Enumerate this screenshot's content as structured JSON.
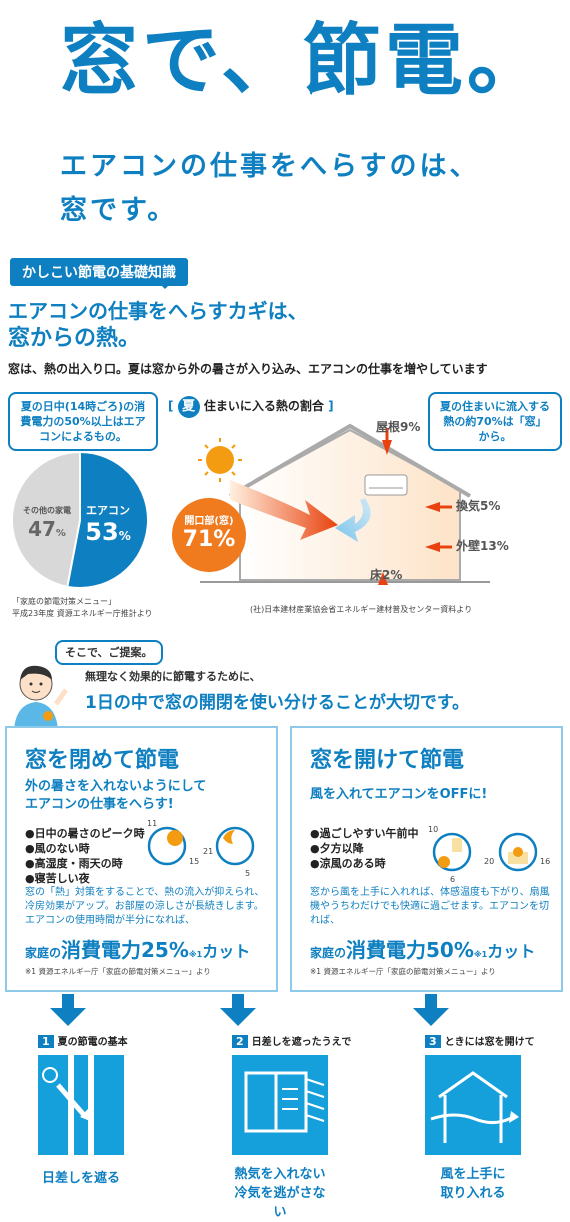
{
  "hero": {
    "title": "窓で、節電。",
    "subtitle_line1": "エアコンの仕事をへらすのは、",
    "subtitle_line2": "窓です。"
  },
  "basics": {
    "tag": "かしこい節電の基礎知識",
    "heading_line1": "エアコンの仕事をへらすカギは、",
    "heading_line2": "窓からの熱。",
    "description": "窓は、熱の出入り口。夏は窓から外の暑さが入り込み、エアコンの仕事を増やしています"
  },
  "pie": {
    "bubble": "夏の日中(14時ごろ)の消費電力の50%以上はエアコンによるもの。",
    "other_label": "その他の家電",
    "other_value": "47",
    "ac_label": "エアコン",
    "ac_value": "53",
    "unit": "%",
    "source_line1": "「家庭の節電対策メニュー」",
    "source_line2": "平成23年度 資源エネルギー庁推計より"
  },
  "chart_data": {
    "type": "pie",
    "categories": [
      "エアコン",
      "その他の家電"
    ],
    "values": [
      53,
      47
    ]
  },
  "house": {
    "title": "夏",
    "title_rest": "住まいに入る熱の割合",
    "bubble": "夏の住まいに流入する熱の約70%は「窓」から。",
    "roof": "屋根9%",
    "vent": "換気5%",
    "wall": "外壁13%",
    "floor": "床2%",
    "opening_label": "開口部(窓)",
    "opening_value": "71%",
    "source": "(社)日本建材産業協会省エネルギー建材普及センター資料より"
  },
  "proposal": {
    "bubble": "そこで、ご提案。",
    "line1": "無理なく効果的に節電するために、",
    "line2": "1日の中で窓の開閉を使い分けることが大切です。"
  },
  "close": {
    "heading": "窓を閉めて節電",
    "sub_line1": "外の暑さを入れないようにして",
    "sub_line2": "エアコンの仕事をへらす!",
    "bullets": [
      "●日中の暑さのピーク時",
      "●風のない時",
      "●高湿度・雨天の時",
      "●寝苦しい夜"
    ],
    "clock1": [
      "11",
      "15"
    ],
    "clock2": [
      "21",
      "5"
    ],
    "body": "窓の「熱」対策をすることで、熱の流入が抑えられ、冷房効果がアップ。お部屋の涼しさが長続きします。エアコンの使用時間が半分になれば、",
    "cut_pre": "家庭の",
    "cut_big": "消費電力25%",
    "cut_note": "※1",
    "cut_post": "カット",
    "footnote": "※1 資源エネルギー庁「家庭の節電対策メニュー」より"
  },
  "open": {
    "heading": "窓を開けて節電",
    "sub": "風を入れてエアコンをOFFに!",
    "bullets": [
      "●過ごしやすい午前中",
      "●夕方以降",
      "●涼風のある時"
    ],
    "clock1": [
      "10",
      "6"
    ],
    "clock2": [
      "20",
      "16"
    ],
    "body": "窓から風を上手に入れれば、体感温度も下がり、扇風機やうちわだけでも快適に過ごせます。エアコンを切れば、",
    "cut_pre": "家庭の",
    "cut_big": "消費電力50%",
    "cut_note": "※1",
    "cut_post": "カット",
    "footnote": "※1 資源エネルギー庁「家庭の節電対策メニュー」より"
  },
  "tips": [
    {
      "num": "1",
      "title": "夏の節電の基本",
      "caption1": "日差しを遮る",
      "caption2": ""
    },
    {
      "num": "2",
      "title": "日差しを遮ったうえで",
      "caption1": "熱気を入れない",
      "caption2": "冷気を逃がさない"
    },
    {
      "num": "3",
      "title": "ときには窓を開けて",
      "caption1": "風を上手に",
      "caption2": "取り入れる"
    }
  ],
  "colors": {
    "brand": "#0e7fc0",
    "accent": "#f07a1e",
    "sky": "#15a0dc"
  }
}
